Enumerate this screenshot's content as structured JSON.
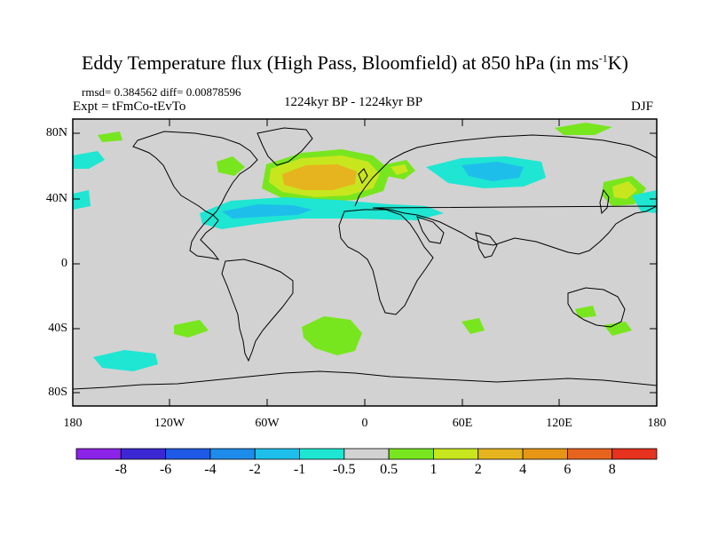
{
  "title": {
    "main": "Eddy Temperature flux (High Pass, Bloomfield) at 850 hPa (in ms",
    "sup": "-1",
    "tail": "K)"
  },
  "stats_line": "rmsd= 0.384562  diff= 0.00878596",
  "experiment": "Expt = tFmCo-tEvTo",
  "period": "1224kyr BP - 1224kyr BP",
  "season": "DJF",
  "map": {
    "lat_ticks": [
      "80N",
      "40N",
      "0",
      "40S",
      "80S"
    ],
    "lon_ticks": [
      "180",
      "120W",
      "60W",
      "0",
      "60E",
      "120E",
      "180"
    ],
    "background_color": "#d2d2d2",
    "land_outline_color": "#000000"
  },
  "colorbar": {
    "labels": [
      "-8",
      "-6",
      "-4",
      "-2",
      "-1",
      "-0.5",
      "0.5",
      "1",
      "2",
      "4",
      "6",
      "8"
    ],
    "colors": [
      "#8c23e8",
      "#3c28d2",
      "#1e5ae6",
      "#1e8ceb",
      "#1ebeeb",
      "#1ee6d2",
      "#d2d2d2",
      "#78e61e",
      "#c8e61e",
      "#e6b41e",
      "#e69614",
      "#e6641e",
      "#e6321e"
    ]
  }
}
